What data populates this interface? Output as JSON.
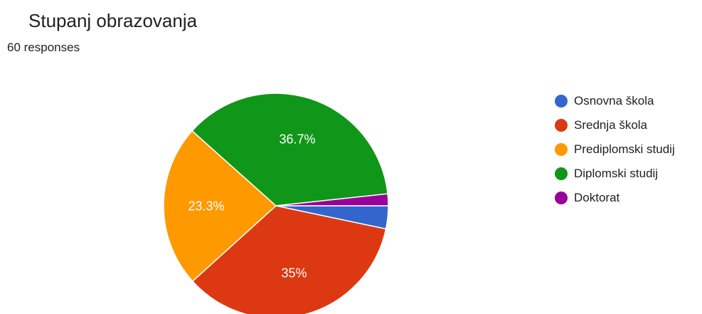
{
  "header": {
    "title": "Stupanj obrazovanja",
    "responses": "60 responses"
  },
  "chart_data": {
    "type": "pie",
    "title": "Stupanj obrazovanja",
    "total_responses": 60,
    "legend_position": "right",
    "slices": [
      {
        "label": "Osnovna škola",
        "percent": 3.3,
        "data_label": "",
        "color": "#3366cc"
      },
      {
        "label": "Srednja škola",
        "percent": 35.0,
        "data_label": "35%",
        "color": "#dc3912"
      },
      {
        "label": "Prediplomski studij",
        "percent": 23.3,
        "data_label": "23.3%",
        "color": "#ff9900"
      },
      {
        "label": "Diplomski studij",
        "percent": 36.7,
        "data_label": "36.7%",
        "color": "#109618"
      },
      {
        "label": "Doktorat",
        "percent": 1.7,
        "data_label": "",
        "color": "#990099"
      }
    ]
  }
}
